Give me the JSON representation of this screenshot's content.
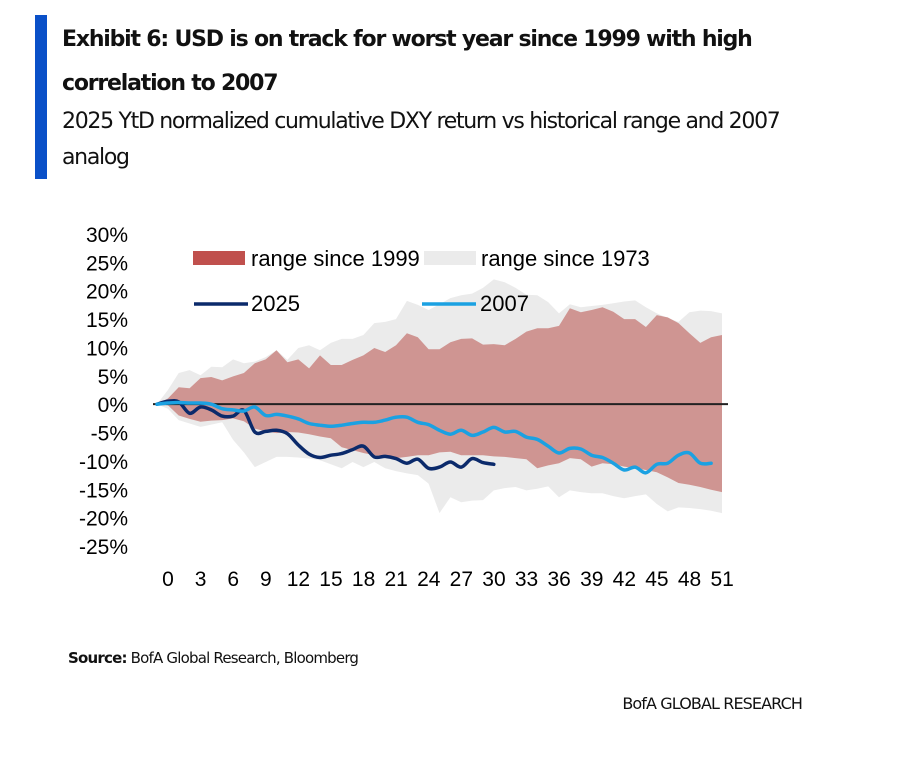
{
  "header": {
    "title": "Exhibit 6: USD is on track for worst year since 1999 with high correlation to 2007",
    "subtitle": "2025 YtD normalized cumulative DXY return vs historical range and 2007 analog",
    "accent_color": "#0a50c8"
  },
  "footer": {
    "source_label": "Source:",
    "source_text": " BofA Global Research, Bloomberg",
    "brand": "BofA GLOBAL RESEARCH"
  },
  "chart_data": {
    "type": "area",
    "title": "Exhibit 6: USD is on track for worst year since 1999 with high correlation to 2007",
    "subtitle": "2025 YtD normalized cumulative DXY return vs historical range and 2007 analog",
    "xlabel": "",
    "ylabel": "",
    "xlim": [
      0,
      52
    ],
    "ylim": [
      -25,
      30
    ],
    "x_ticks": [
      0,
      3,
      6,
      9,
      12,
      15,
      18,
      21,
      24,
      27,
      30,
      33,
      36,
      39,
      42,
      45,
      48,
      51
    ],
    "y_ticks": [
      30,
      25,
      20,
      15,
      10,
      5,
      0,
      -5,
      -10,
      -15,
      -20,
      -25
    ],
    "y_tick_format": "percent",
    "grid": false,
    "zero_line": true,
    "legend": {
      "placement": "top-left",
      "entries": [
        {
          "label": "range since 1999",
          "kind": "area",
          "color": "#c0504d"
        },
        {
          "label": "range since 1973",
          "kind": "area",
          "color": "#ebebeb"
        },
        {
          "label": "2025",
          "kind": "line",
          "color": "#0b2a6b"
        },
        {
          "label": "2007",
          "kind": "line",
          "color": "#1ba1e2"
        }
      ]
    },
    "bands": [
      {
        "name": "range since 1973",
        "color": "#ebebeb",
        "x": [
          0,
          1,
          2,
          3,
          4,
          5,
          6,
          7,
          8,
          9,
          10,
          11,
          12,
          13,
          14,
          15,
          16,
          17,
          18,
          19,
          20,
          21,
          22,
          23,
          24,
          25,
          26,
          27,
          28,
          29,
          30,
          31,
          32,
          33,
          34,
          35,
          36,
          37,
          38,
          39,
          40,
          41,
          42,
          43,
          44,
          45,
          46,
          47,
          48,
          49,
          50,
          51,
          52
        ],
        "upper": [
          0,
          2.5,
          5.5,
          6.0,
          5.1,
          6.6,
          6.5,
          7.9,
          7.2,
          7.5,
          8.3,
          9.5,
          7.8,
          9.9,
          10.4,
          9.5,
          10.8,
          11.5,
          11.5,
          12.2,
          14.3,
          14.5,
          15.0,
          18.2,
          17.5,
          16.6,
          17.6,
          18.7,
          19.2,
          19.5,
          20.5,
          22.0,
          21.5,
          20.5,
          19.3,
          19.2,
          18.0,
          16.0,
          17.6,
          17.1,
          17.3,
          17.5,
          17.8,
          18.1,
          18.3,
          17.1,
          16.0,
          15.2,
          14.5,
          16.2,
          16.5,
          16.4,
          16.0
        ],
        "lower": [
          0,
          -0.8,
          -2.8,
          -3.4,
          -4.0,
          -3.6,
          -3.2,
          -6.3,
          -8.5,
          -11.1,
          -10.2,
          -9.3,
          -9.3,
          -9.4,
          -9.6,
          -9.9,
          -10.6,
          -11.3,
          -10.2,
          -11.1,
          -10.2,
          -11.3,
          -11.8,
          -12.2,
          -12.5,
          -14.0,
          -19.2,
          -16.4,
          -17.3,
          -17.0,
          -16.9,
          -15.2,
          -14.8,
          -14.6,
          -15.2,
          -14.9,
          -14.5,
          -16.4,
          -15.2,
          -15.5,
          -15.7,
          -15.7,
          -16.2,
          -16.6,
          -16.2,
          -15.9,
          -17.6,
          -18.9,
          -18.2,
          -18.3,
          -18.5,
          -18.8,
          -19.2
        ]
      },
      {
        "name": "range since 1999",
        "color": "#c0504d",
        "x": [
          0,
          1,
          2,
          3,
          4,
          5,
          6,
          7,
          8,
          9,
          10,
          11,
          12,
          13,
          14,
          15,
          16,
          17,
          18,
          19,
          20,
          21,
          22,
          23,
          24,
          25,
          26,
          27,
          28,
          29,
          30,
          31,
          32,
          33,
          34,
          35,
          36,
          37,
          38,
          39,
          40,
          41,
          42,
          43,
          44,
          45,
          46,
          47,
          48,
          49,
          50,
          51,
          52
        ],
        "upper": [
          0,
          1.0,
          3.0,
          2.8,
          4.6,
          4.8,
          4.2,
          4.9,
          5.5,
          7.2,
          7.9,
          9.5,
          7.4,
          7.9,
          6.3,
          8.6,
          6.9,
          6.9,
          7.8,
          8.6,
          9.9,
          9.2,
          10.4,
          12.5,
          11.8,
          9.7,
          9.7,
          10.9,
          11.5,
          11.6,
          10.5,
          10.6,
          10.4,
          11.5,
          12.8,
          13.4,
          13.4,
          13.8,
          16.9,
          16.2,
          16.6,
          17.1,
          16.3,
          15.0,
          15.0,
          13.6,
          15.7,
          15.3,
          14.3,
          12.5,
          10.8,
          11.8,
          12.2
        ],
        "lower": [
          0,
          -0.2,
          -2.0,
          -2.6,
          -3.1,
          -2.9,
          -2.8,
          -2.5,
          -3.0,
          -4.3,
          -4.8,
          -5.1,
          -4.9,
          -5.0,
          -5.3,
          -5.7,
          -6.0,
          -7.6,
          -8.1,
          -8.6,
          -9.0,
          -9.2,
          -9.5,
          -9.3,
          -9.0,
          -9.0,
          -8.5,
          -8.4,
          -9.0,
          -9.0,
          -9.0,
          -9.2,
          -9.3,
          -9.5,
          -9.7,
          -11.3,
          -10.8,
          -10.4,
          -9.5,
          -9.7,
          -11.0,
          -10.4,
          -10.6,
          -11.0,
          -11.3,
          -11.6,
          -12.0,
          -12.9,
          -13.9,
          -14.2,
          -14.6,
          -15.1,
          -15.5
        ]
      }
    ],
    "series": [
      {
        "name": "2025",
        "color": "#0b2a6b",
        "x": [
          0,
          1,
          2,
          3,
          4,
          5,
          6,
          7,
          8,
          9,
          10,
          11,
          12,
          13,
          14,
          15,
          16,
          17,
          18,
          19,
          20,
          21,
          22,
          23,
          24,
          25,
          26,
          27,
          28,
          29,
          30,
          31
        ],
        "values": [
          0,
          0.5,
          0.4,
          -1.6,
          -0.5,
          -1.0,
          -2.1,
          -2.1,
          -1.1,
          -4.9,
          -4.8,
          -4.6,
          -5.2,
          -7.2,
          -8.8,
          -9.4,
          -9.0,
          -8.7,
          -8.0,
          -7.4,
          -9.3,
          -9.2,
          -9.6,
          -10.4,
          -9.7,
          -11.3,
          -11.1,
          -10.2,
          -11.1,
          -9.6,
          -10.3,
          -10.6
        ]
      },
      {
        "name": "2007",
        "color": "#1ba1e2",
        "x": [
          0,
          1,
          2,
          3,
          4,
          5,
          6,
          7,
          8,
          9,
          10,
          11,
          12,
          13,
          14,
          15,
          16,
          17,
          18,
          19,
          20,
          21,
          22,
          23,
          24,
          25,
          26,
          27,
          28,
          29,
          30,
          31,
          32,
          33,
          34,
          35,
          36,
          37,
          38,
          39,
          40,
          41,
          42,
          43,
          44,
          45,
          46,
          47,
          48,
          49,
          50,
          51
        ],
        "values": [
          0,
          0.2,
          0.3,
          0.2,
          0.2,
          0.0,
          -0.8,
          -1.0,
          -1.2,
          -0.5,
          -2.0,
          -1.8,
          -2.1,
          -2.6,
          -3.4,
          -3.7,
          -3.9,
          -3.7,
          -3.4,
          -3.2,
          -3.2,
          -2.8,
          -2.3,
          -2.3,
          -3.2,
          -3.6,
          -4.6,
          -5.3,
          -4.6,
          -5.5,
          -4.9,
          -4.1,
          -4.9,
          -4.8,
          -5.8,
          -6.2,
          -7.4,
          -8.6,
          -7.8,
          -7.9,
          -9.0,
          -9.4,
          -10.4,
          -11.6,
          -11.1,
          -12.1,
          -10.6,
          -10.4,
          -9.0,
          -8.6,
          -10.4,
          -10.4
        ]
      }
    ]
  }
}
